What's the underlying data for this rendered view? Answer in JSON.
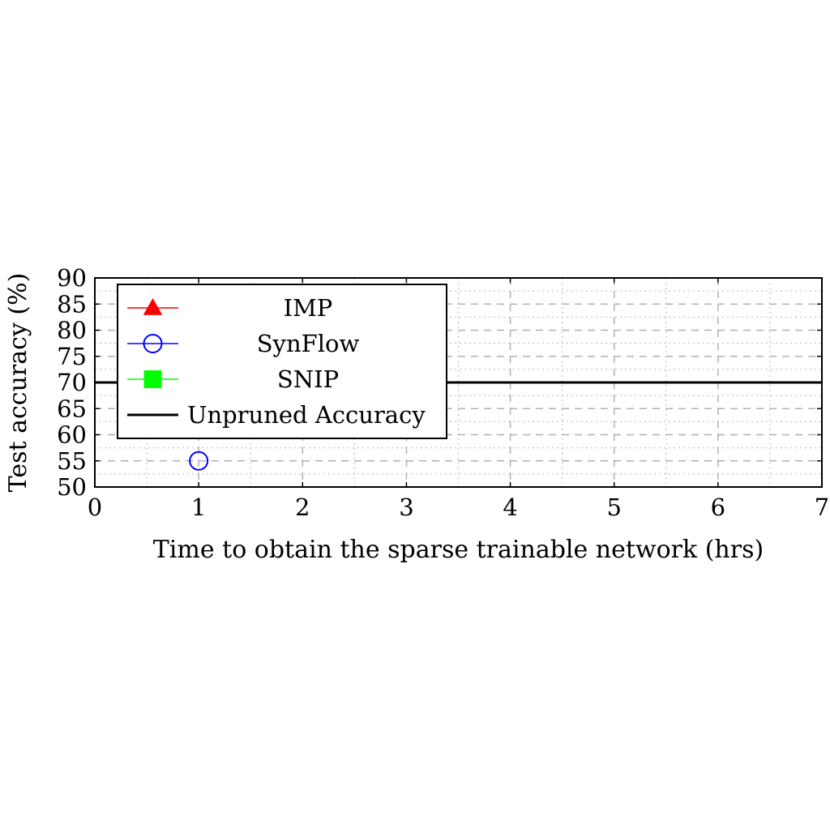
{
  "chart_data": {
    "type": "scatter",
    "title": "",
    "xlabel": "Time to obtain the sparse trainable network (hrs)",
    "ylabel": "Test accuracy (%)",
    "xlim": [
      0,
      7
    ],
    "ylim": [
      50,
      90
    ],
    "x_ticks": [
      0,
      1,
      2,
      3,
      4,
      5,
      6,
      7
    ],
    "y_ticks": [
      50,
      55,
      60,
      65,
      70,
      75,
      80,
      85,
      90
    ],
    "grid": true,
    "legend_position": "top-left",
    "series": [
      {
        "name": "IMP",
        "color": "#ff0000",
        "marker": "triangle",
        "points": []
      },
      {
        "name": "SynFlow",
        "color": "#0000ff",
        "marker": "circle-open",
        "points": [
          {
            "x": 1,
            "y": 55
          }
        ]
      },
      {
        "name": "SNIP",
        "color": "#00ff00",
        "marker": "square",
        "points": []
      }
    ],
    "reference_lines": [
      {
        "name": "Unpruned Accuracy",
        "color": "#000000",
        "y": 70
      }
    ]
  }
}
